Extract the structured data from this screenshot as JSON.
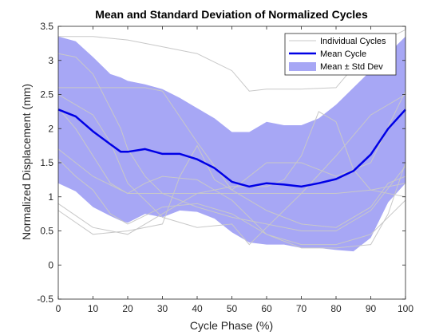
{
  "chart_data": {
    "type": "line",
    "title": "Mean and Standard Deviation of Normalized Cycles",
    "xlabel": "Cycle Phase (%)",
    "ylabel": "Normalized Displacement (mm)",
    "xlim": [
      0,
      100
    ],
    "ylim": [
      -0.5,
      3.5
    ],
    "xticks": [
      "0",
      "10",
      "20",
      "30",
      "40",
      "50",
      "60",
      "70",
      "80",
      "90",
      "100"
    ],
    "yticks": [
      "-0.5",
      "0",
      "0.5",
      "1",
      "1.5",
      "2",
      "2.5",
      "3",
      "3.5"
    ],
    "grid": false,
    "legend_position": "top-right",
    "legend": [
      "Individual Cycles",
      "Mean Cycle",
      "Mean ± Std Dev"
    ],
    "colors": {
      "individual": "#c8c8c8",
      "mean": "#0000e6",
      "band": "#a7a7f5",
      "axis": "#262626"
    },
    "x": [
      0,
      5,
      10,
      15,
      18,
      20,
      25,
      30,
      35,
      40,
      45,
      50,
      55,
      60,
      65,
      70,
      75,
      80,
      85,
      90,
      95,
      100
    ],
    "mean": [
      2.28,
      2.18,
      1.96,
      1.77,
      1.66,
      1.66,
      1.7,
      1.63,
      1.63,
      1.55,
      1.42,
      1.22,
      1.15,
      1.2,
      1.18,
      1.15,
      1.2,
      1.26,
      1.38,
      1.62,
      2.0,
      2.28
    ],
    "upper": [
      3.35,
      3.28,
      3.05,
      2.8,
      2.75,
      2.7,
      2.65,
      2.58,
      2.45,
      2.3,
      2.15,
      1.95,
      1.95,
      2.1,
      2.05,
      2.05,
      2.15,
      2.35,
      2.6,
      2.85,
      3.1,
      3.35
    ],
    "lower": [
      1.2,
      1.08,
      0.85,
      0.72,
      0.65,
      0.62,
      0.75,
      0.7,
      0.8,
      0.78,
      0.68,
      0.48,
      0.33,
      0.3,
      0.3,
      0.25,
      0.25,
      0.22,
      0.2,
      0.4,
      0.92,
      1.2
    ],
    "individual_cycles": [
      {
        "x": [
          0,
          10,
          20,
          30,
          40,
          50,
          55,
          60,
          70,
          80,
          90,
          100
        ],
        "values": [
          3.35,
          3.35,
          3.3,
          3.2,
          3.1,
          2.85,
          2.55,
          2.58,
          2.58,
          2.6,
          3.2,
          3.45
        ]
      },
      {
        "x": [
          0,
          10,
          20,
          25,
          30,
          40,
          50,
          60,
          70,
          80,
          90,
          95,
          100
        ],
        "values": [
          2.6,
          2.6,
          2.6,
          2.6,
          2.55,
          1.8,
          1.1,
          0.8,
          0.6,
          0.55,
          0.85,
          1.2,
          1.3
        ]
      },
      {
        "x": [
          0,
          5,
          10,
          20,
          30,
          40,
          50,
          60,
          70,
          80,
          90,
          100
        ],
        "values": [
          1.7,
          1.5,
          1.3,
          1.05,
          1.05,
          1.05,
          1.05,
          1.05,
          1.05,
          1.05,
          1.1,
          1.2
        ]
      },
      {
        "x": [
          0,
          5,
          10,
          15,
          20,
          30,
          40,
          50,
          60,
          70,
          80,
          90,
          100
        ],
        "values": [
          1.55,
          1.3,
          1.1,
          0.75,
          0.6,
          0.85,
          0.9,
          0.75,
          0.45,
          0.3,
          0.3,
          0.45,
          0.95
        ]
      },
      {
        "x": [
          0,
          5,
          10,
          15,
          20,
          25,
          30,
          40,
          50,
          60,
          70,
          80,
          90,
          95,
          100
        ],
        "values": [
          2.3,
          2.0,
          1.6,
          1.2,
          1.05,
          1.2,
          1.3,
          1.25,
          0.95,
          0.45,
          0.25,
          0.25,
          0.3,
          0.75,
          1.5
        ]
      },
      {
        "x": [
          0,
          10,
          20,
          30,
          40,
          50,
          60,
          65,
          70,
          75,
          80,
          85,
          90,
          100
        ],
        "values": [
          0.9,
          0.55,
          0.45,
          0.75,
          1.05,
          1.15,
          1.15,
          1.25,
          1.6,
          2.25,
          2.1,
          1.4,
          1.1,
          1.0
        ]
      },
      {
        "x": [
          0,
          5,
          10,
          15,
          18,
          20,
          25,
          30,
          40,
          50,
          60,
          70,
          80,
          90,
          100
        ],
        "values": [
          3.1,
          3.05,
          2.8,
          2.3,
          2.0,
          1.7,
          1.3,
          1.05,
          0.85,
          0.7,
          0.6,
          0.5,
          0.5,
          0.8,
          1.45
        ]
      },
      {
        "x": [
          0,
          10,
          15,
          20,
          30,
          40,
          50,
          55,
          60,
          70,
          80,
          90,
          100
        ],
        "values": [
          2.5,
          2.2,
          1.8,
          1.2,
          0.7,
          0.55,
          0.6,
          0.3,
          0.55,
          1.05,
          1.6,
          2.2,
          2.5
        ]
      },
      {
        "x": [
          0,
          10,
          20,
          30,
          35,
          40,
          45,
          50,
          60,
          70,
          80,
          90,
          100
        ],
        "values": [
          0.8,
          0.45,
          0.5,
          0.6,
          1.3,
          1.75,
          1.25,
          1.1,
          1.5,
          1.5,
          1.3,
          1.5,
          2.55
        ]
      }
    ]
  }
}
